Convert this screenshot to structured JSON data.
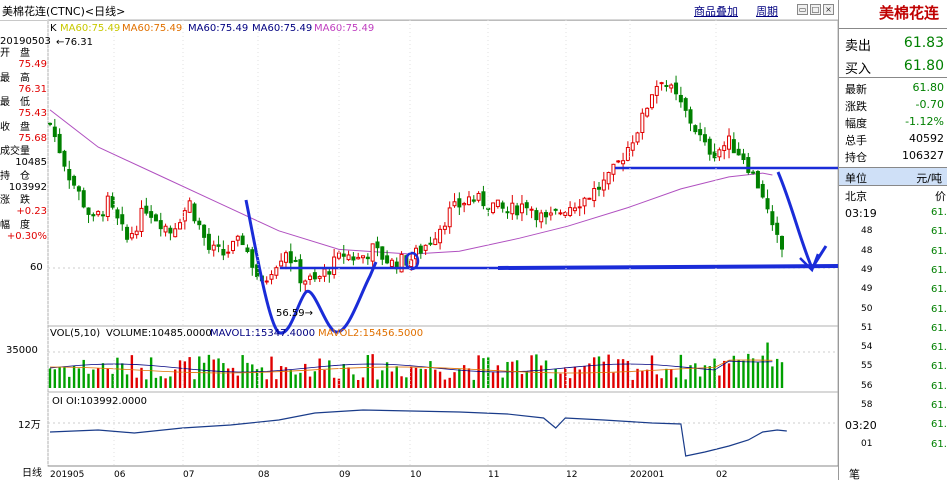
{
  "title": "美棉花连(CTNC)<日线>",
  "toolbar": {
    "add_label": "商品叠加",
    "period_label": "周期"
  },
  "ma_legend": {
    "prefix": "K",
    "items": [
      {
        "text": "MA60:75.49",
        "color": "#c8c800"
      },
      {
        "text": "MA60:75.49",
        "color": "#e07000"
      },
      {
        "text": "MA60:75.49",
        "color": "#000080"
      },
      {
        "text": "MA60:75.49",
        "color": "#000080"
      },
      {
        "text": "MA60:75.49",
        "color": "#c040c0"
      }
    ]
  },
  "left_info": {
    "date": "20190503",
    "labels": [
      {
        "label": "开　盘",
        "value": "75.49"
      },
      {
        "label": "最　高",
        "value": "76.31"
      },
      {
        "label": "最　低",
        "value": "75.43"
      },
      {
        "label": "收　盘",
        "value": "75.68"
      },
      {
        "label": "成交量",
        "value": "10485"
      },
      {
        "label": "持　仓",
        "value": "103992"
      },
      {
        "label": "涨　跌",
        "value": "+0.23"
      },
      {
        "label": "幅　度",
        "value": "+0.30%"
      }
    ]
  },
  "annotations": {
    "high_label": "←76.31",
    "low_label": "56.59→",
    "price_axis_label": "60",
    "vol_axis_label": "35000",
    "oi_axis_label": "12万"
  },
  "vol_legend": {
    "name": "VOL(5,10)",
    "volume": "VOLUME:10485.0000",
    "mavol1": "MAVOL1:15347.4000",
    "mavol2": "MAVOL2:15456.5000"
  },
  "oi_legend": {
    "text": "OI OI:103992.0000"
  },
  "x_axis": {
    "prefix": "日线",
    "labels": [
      "201905",
      "06",
      "07",
      "08",
      "09",
      "10",
      "11",
      "12",
      "202001",
      "02"
    ]
  },
  "quote_panel": {
    "name": "美棉花连",
    "sell": {
      "label": "卖出",
      "value": "61.83"
    },
    "buy": {
      "label": "买入",
      "value": "61.80"
    },
    "rows": [
      {
        "label": "最新",
        "value": "61.80",
        "color": "#008000"
      },
      {
        "label": "涨跌",
        "value": "-0.70",
        "color": "#008000"
      },
      {
        "label": "幅度",
        "value": "-1.12%",
        "color": "#008000"
      },
      {
        "label": "总手",
        "value": "40592",
        "color": "#000000"
      },
      {
        "label": "持仓",
        "value": "106327",
        "color": "#000000"
      }
    ],
    "unit_label": "单位",
    "unit_value": "元/吨",
    "location": "北京",
    "location_right": "价",
    "ticks": [
      {
        "time": "03:19",
        "price": "61."
      },
      {
        "time": "48",
        "price": "61."
      },
      {
        "time": "48",
        "price": "61."
      },
      {
        "time": "49",
        "price": "61."
      },
      {
        "time": "49",
        "price": "61."
      },
      {
        "time": "50",
        "price": "61."
      },
      {
        "time": "51",
        "price": "61."
      },
      {
        "time": "54",
        "price": "61."
      },
      {
        "time": "55",
        "price": "61."
      },
      {
        "time": "56",
        "price": "61."
      },
      {
        "time": "58",
        "price": "61."
      },
      {
        "time": "03:20",
        "price": "61."
      },
      {
        "time": "01",
        "price": "61."
      }
    ],
    "bottom_label": "笔"
  },
  "chart_data": {
    "type": "candlestick",
    "period": "daily",
    "x_range": [
      "2019-05",
      "2020-02"
    ],
    "y_range": [
      55,
      85
    ],
    "series": [
      {
        "name": "MA60",
        "values_approx": [
          76,
          72,
          68,
          64,
          61,
          60,
          60.5,
          62,
          64,
          68,
          70.5,
          71
        ]
      }
    ],
    "close_approx": [
      {
        "x": "2019-05",
        "y": 75.5
      },
      {
        "x": "2019-06",
        "y": 66
      },
      {
        "x": "2019-07",
        "y": 66
      },
      {
        "x": "2019-08",
        "y": 58
      },
      {
        "x": "2019-09",
        "y": 60
      },
      {
        "x": "2019-10",
        "y": 61
      },
      {
        "x": "2019-11",
        "y": 65
      },
      {
        "x": "2019-12",
        "y": 66
      },
      {
        "x": "2020-01",
        "y": 71
      },
      {
        "x": "2020-02",
        "y": 70
      },
      {
        "x": "2020-03",
        "y": 62
      }
    ],
    "extremes": {
      "high": 76.31,
      "low": 56.59
    },
    "volume": {
      "mavol1": 15347.4,
      "mavol2": 15456.5,
      "last": 10485
    },
    "open_interest": {
      "last": 103992
    }
  }
}
